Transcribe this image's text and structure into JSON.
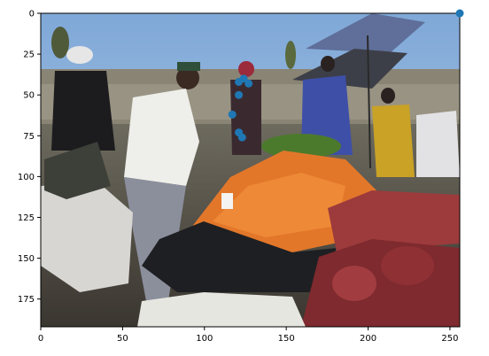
{
  "chart_data": {
    "type": "scatter",
    "title": "",
    "xlabel": "",
    "ylabel": "",
    "xlim": [
      0,
      256
    ],
    "ylim": [
      192,
      0
    ],
    "y_inverted": true,
    "grid": false,
    "background_image": "market-scene-photo",
    "x_ticks": [
      0,
      50,
      100,
      150,
      200,
      250
    ],
    "y_ticks": [
      0,
      25,
      50,
      75,
      100,
      125,
      150,
      175
    ],
    "marker_color": "#1f77b4",
    "series": [
      {
        "points": [
          {
            "x": 121,
            "y": 42
          },
          {
            "x": 124,
            "y": 40
          },
          {
            "x": 127,
            "y": 43
          },
          {
            "x": 121,
            "y": 50
          },
          {
            "x": 117,
            "y": 62
          },
          {
            "x": 121,
            "y": 73
          },
          {
            "x": 123,
            "y": 76
          },
          {
            "x": 256,
            "y": 0
          }
        ]
      }
    ]
  }
}
